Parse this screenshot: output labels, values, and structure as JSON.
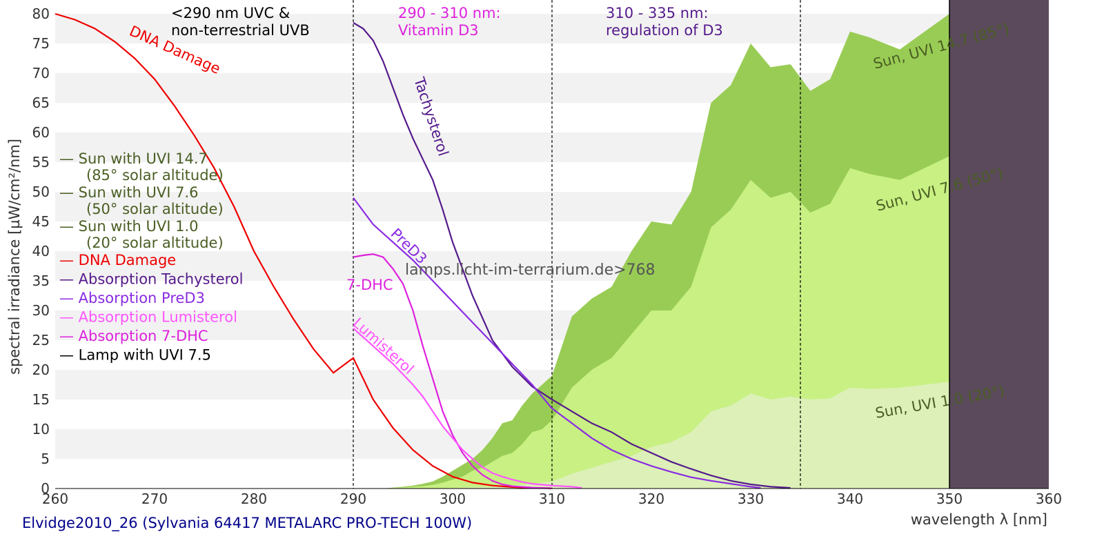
{
  "chart_data": {
    "type": "line",
    "title": "",
    "xlabel": "wavelength λ [nm]",
    "ylabel": "spectral irradiance [µW/cm²/nm]",
    "xlim": [
      260,
      360
    ],
    "ylim": [
      0,
      80
    ],
    "x_ticks": [
      260,
      270,
      280,
      290,
      300,
      310,
      320,
      330,
      340,
      350,
      360
    ],
    "y_ticks": [
      0,
      5,
      10,
      15,
      20,
      25,
      30,
      35,
      40,
      45,
      50,
      55,
      60,
      65,
      70,
      75,
      80
    ],
    "grid": "horizontal alternating bands",
    "caption": "Elvidge2010_26 (Sylvania 64417 METALARC PRO-TECH 100W)",
    "watermark": "lamps.licht-im-terrarium.de>768",
    "colors": {
      "dna": "#ee0000",
      "tachysterol": "#551a8b",
      "pred3": "#8a2be2",
      "lumisterol": "#ff55ff",
      "dhc7": "#dd22dd",
      "lamp": "#000000",
      "sun_text": "#4a5e23",
      "sun147_fill": "#99cc55",
      "sun76_fill": "#c8f083",
      "sun10_fill": "#dcf0b8",
      "lamp_fill": "#5b4a5b"
    },
    "regions": [
      {
        "boundary": 290,
        "label_lines": [
          "<290 nm UVC &",
          "non-terrestrial UVB"
        ],
        "color": "#000000"
      },
      {
        "boundary": 310,
        "label_lines": [
          "290 - 310 nm:",
          "Vitamin D3"
        ],
        "color": "#dd22dd"
      },
      {
        "boundary": 335,
        "label_lines": [
          "310 - 335 nm:",
          "regulation of D3"
        ],
        "color": "#551a8b"
      }
    ],
    "legend": [
      {
        "text": "— Sun with UVI 14.7",
        "sub": "(85° solar altitude)",
        "color": "#4a5e23"
      },
      {
        "text": "— Sun with UVI 7.6",
        "sub": "(50° solar altitude)",
        "color": "#4a5e23"
      },
      {
        "text": "— Sun with UVI 1.0",
        "sub": "(20° solar altitude)",
        "color": "#4a5e23"
      },
      {
        "text": "— DNA Damage",
        "sub": "",
        "color": "#ee0000"
      },
      {
        "text": "— Absorption Tachysterol",
        "sub": "",
        "color": "#551a8b"
      },
      {
        "text": "— Absorption PreD3",
        "sub": "",
        "color": "#8a2be2"
      },
      {
        "text": "— Absorption Lumisterol",
        "sub": "",
        "color": "#ff55ff"
      },
      {
        "text": "— Absorption 7-DHC",
        "sub": "",
        "color": "#dd22dd"
      },
      {
        "text": "— Lamp with UVI 7.5",
        "sub": "",
        "color": "#000000"
      }
    ],
    "curve_labels": {
      "dna": "DNA Damage",
      "tachysterol": "Tachysterol",
      "pred3": "PreD3",
      "dhc7": "7-DHC",
      "lumisterol": "Lumisterol",
      "sun147": "Sun, UVI 14.7 (85°)",
      "sun76": "Sun, UVI 7.6 (50°)",
      "sun10": "Sun, UVI 1.0 (20°)"
    },
    "series": [
      {
        "key": "sun147",
        "name": "Sun with UVI 14.7",
        "type": "area",
        "x": [
          293,
          295,
          296,
          297,
          298,
          299,
          300,
          301,
          302,
          303,
          304,
          305,
          306,
          307,
          308,
          309,
          310,
          312,
          314,
          316,
          318,
          320,
          322,
          324,
          326,
          328,
          330,
          332,
          334,
          336,
          338,
          340,
          342,
          345,
          350
        ],
        "y": [
          0,
          0.3,
          0.5,
          0.8,
          1.2,
          2,
          3,
          4,
          5,
          6.5,
          8.5,
          11,
          11.5,
          14,
          16,
          17.5,
          19,
          29,
          32,
          34,
          40,
          45,
          44.5,
          50,
          65,
          68,
          75,
          71,
          71.5,
          67,
          69,
          77,
          76,
          74,
          80
        ]
      },
      {
        "key": "sun76",
        "name": "Sun with UVI 7.6",
        "type": "area",
        "x": [
          293,
          295,
          297,
          298,
          299,
          300,
          301,
          302,
          303,
          304,
          305,
          306,
          307,
          308,
          309,
          310,
          312,
          314,
          316,
          318,
          320,
          322,
          324,
          326,
          328,
          330,
          332,
          334,
          336,
          338,
          340,
          342,
          345,
          350
        ],
        "y": [
          0,
          0.2,
          0.4,
          0.6,
          1,
          1.5,
          2,
          3,
          3.5,
          4.5,
          5.5,
          6,
          7.5,
          9.5,
          10,
          11.5,
          17,
          20,
          22,
          26,
          30,
          30,
          34,
          44,
          47,
          52,
          49,
          50,
          46.5,
          48,
          54,
          53,
          52,
          56
        ]
      },
      {
        "key": "sun10",
        "name": "Sun with UVI 1.0",
        "type": "area",
        "x": [
          298,
          300,
          302,
          304,
          306,
          308,
          310,
          312,
          314,
          316,
          318,
          320,
          322,
          324,
          326,
          328,
          330,
          332,
          334,
          336,
          338,
          340,
          342,
          345,
          350
        ],
        "y": [
          0,
          0.1,
          0.2,
          0.3,
          0.5,
          0.8,
          1.2,
          2.5,
          3.5,
          4.5,
          5.5,
          7,
          7.8,
          9.5,
          13,
          14,
          16,
          15,
          15.5,
          15,
          15.2,
          17,
          16.8,
          17,
          18
        ]
      },
      {
        "key": "dna",
        "name": "DNA Damage",
        "type": "line",
        "x": [
          260,
          262,
          264,
          266,
          268,
          270,
          272,
          274,
          276,
          278,
          280,
          282,
          284,
          286,
          288,
          290,
          292,
          294,
          296,
          298,
          300,
          302,
          304,
          306,
          308,
          310
        ],
        "y": [
          80,
          79,
          77.5,
          75.3,
          72.5,
          69,
          64.5,
          59.5,
          54,
          47.5,
          40,
          34,
          28.5,
          23.5,
          19.5,
          22,
          15,
          10.2,
          6.5,
          3.8,
          2,
          1,
          0.5,
          0.25,
          0.1,
          0.05
        ]
      },
      {
        "key": "tachysterol",
        "name": "Absorption Tachysterol",
        "type": "line",
        "x": [
          290,
          291,
          292,
          293,
          294,
          295,
          296,
          297,
          298,
          299,
          300,
          302,
          304,
          306,
          308,
          310,
          312,
          314,
          316,
          318,
          320,
          322,
          324,
          326,
          328,
          330,
          332,
          334
        ],
        "y": [
          78.5,
          77.5,
          75.5,
          72,
          67.5,
          63,
          59,
          55.5,
          52,
          47,
          41.5,
          32.5,
          25,
          20.5,
          17.2,
          15,
          13,
          11,
          9.5,
          7.5,
          6,
          4.5,
          3.3,
          2.2,
          1.3,
          0.7,
          0.3,
          0.1
        ]
      },
      {
        "key": "pred3",
        "name": "Absorption PreD3",
        "type": "line",
        "x": [
          290,
          292,
          294,
          296,
          298,
          300,
          302,
          304,
          306,
          308,
          310,
          312,
          314,
          316,
          318,
          320,
          322,
          324,
          326,
          328,
          330,
          331
        ],
        "y": [
          49,
          44.5,
          41.5,
          38.5,
          35,
          31.5,
          28,
          24.5,
          21,
          17.5,
          13.5,
          11,
          8.5,
          6.5,
          5,
          3.8,
          2.8,
          1.9,
          1.3,
          0.8,
          0.3,
          0.1
        ]
      },
      {
        "key": "dhc7",
        "name": "Absorption 7-DHC",
        "type": "line",
        "x": [
          290,
          291,
          292,
          293,
          294,
          295,
          296,
          297,
          298,
          299,
          300,
          301,
          302,
          303,
          304,
          305,
          306,
          308,
          310
        ],
        "y": [
          39,
          39.3,
          39.5,
          39,
          37,
          34.5,
          30,
          24,
          18.5,
          13,
          9,
          6,
          3.8,
          2.3,
          1.3,
          0.7,
          0.4,
          0.15,
          0.05
        ]
      },
      {
        "key": "lumisterol",
        "name": "Absorption Lumisterol",
        "type": "line",
        "x": [
          290,
          292,
          294,
          296,
          297,
          298,
          299,
          300,
          301,
          302,
          303,
          304,
          305,
          306,
          307,
          308,
          310,
          312,
          313
        ],
        "y": [
          27,
          24,
          21,
          17.5,
          15.5,
          13,
          10.5,
          8.5,
          6.5,
          5,
          3.6,
          2.6,
          2,
          1.5,
          1.1,
          0.8,
          0.5,
          0.3,
          0.1
        ]
      }
    ],
    "lamp_band": {
      "x_from": 350,
      "x_to": 360
    }
  }
}
